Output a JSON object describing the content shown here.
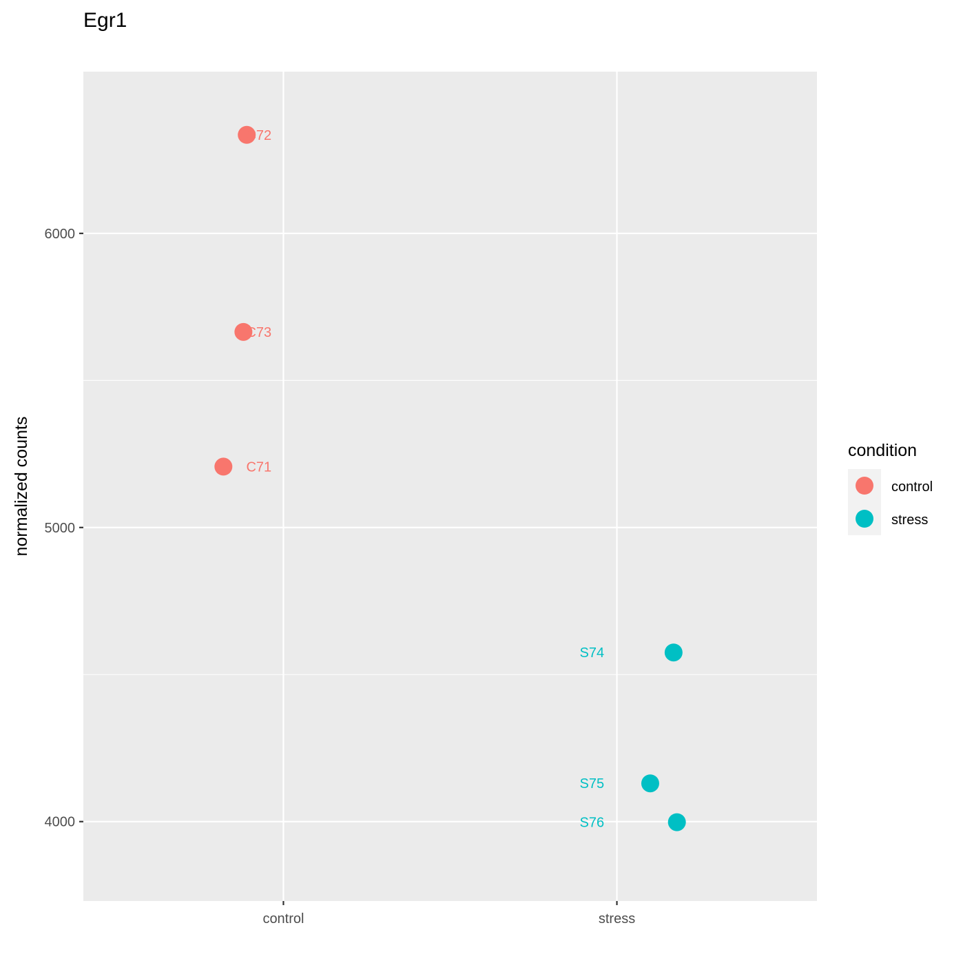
{
  "chart_data": {
    "type": "scatter",
    "title": "Egr1",
    "xlabel": "",
    "ylabel": "normalized counts",
    "categories": [
      "control",
      "stress"
    ],
    "y_ticks": [
      4000,
      5000,
      6000
    ],
    "ylim": [
      3730,
      6550
    ],
    "grid": true,
    "legend": {
      "title": "condition",
      "position": "right",
      "entries": [
        "control",
        "stress"
      ]
    },
    "colors": {
      "control": "#F8766D",
      "stress": "#00BFC4",
      "panel": "#EBEBEB",
      "grid": "#FFFFFF"
    },
    "series": [
      {
        "name": "control",
        "points": [
          {
            "label": "C72",
            "category": "control",
            "jitter": -0.11,
            "y": 6335
          },
          {
            "label": "C73",
            "category": "control",
            "jitter": -0.12,
            "y": 5665
          },
          {
            "label": "C71",
            "category": "control",
            "jitter": -0.18,
            "y": 5207
          }
        ]
      },
      {
        "name": "stress",
        "points": [
          {
            "label": "S74",
            "category": "stress",
            "jitter": 0.17,
            "y": 4575
          },
          {
            "label": "S75",
            "category": "stress",
            "jitter": 0.1,
            "y": 4130
          },
          {
            "label": "S76",
            "category": "stress",
            "jitter": 0.18,
            "y": 3998
          }
        ]
      }
    ]
  }
}
